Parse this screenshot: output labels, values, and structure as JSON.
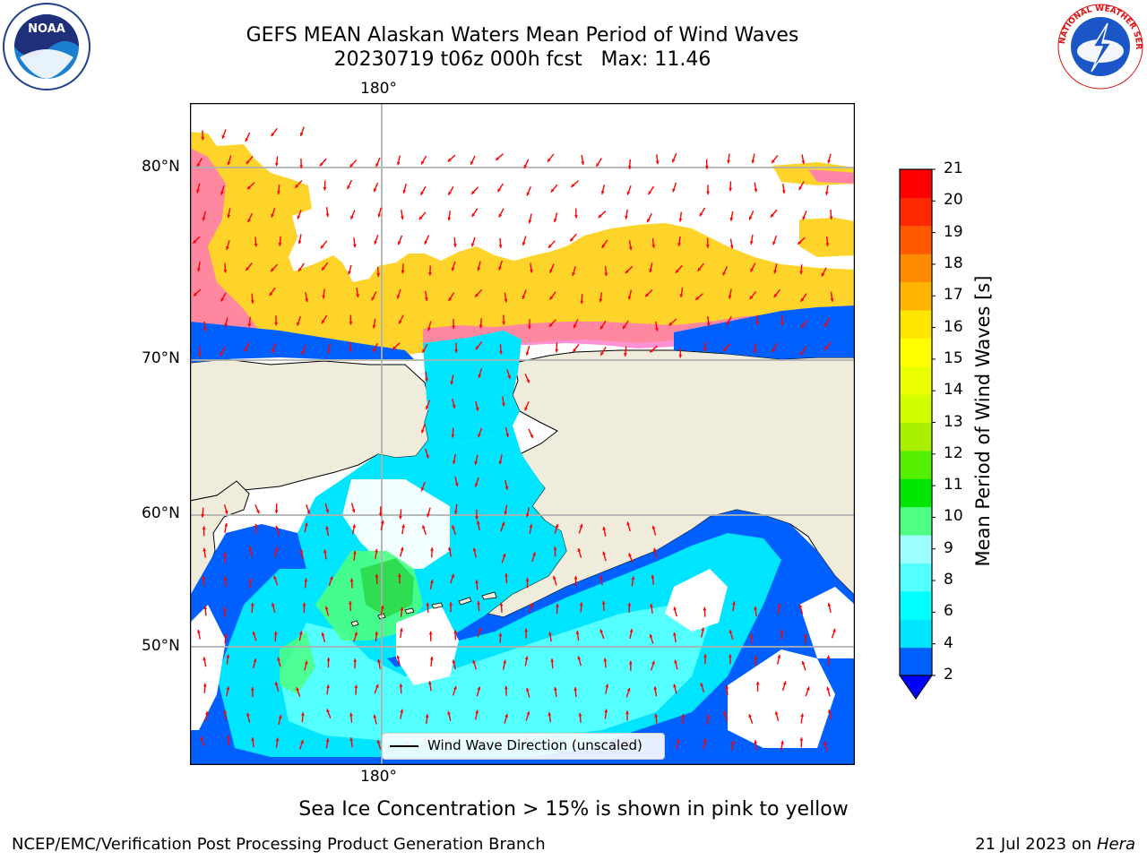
{
  "header": {
    "title_line1": "GEFS MEAN Alaskan Waters Mean Period of Wind Waves",
    "title_line2": "20230719 t06z 000h fcst   Max: 11.46"
  },
  "logos": {
    "noara_left": "NOAA",
    "nws_right": "NATIONAL WEATHER SERVICE"
  },
  "map": {
    "lon_label_top": "180°",
    "lon_label_bottom": "180°",
    "lat_labels": [
      "80°N",
      "70°N",
      "60°N",
      "50°N"
    ],
    "legend_text": "Wind Wave Direction (unscaled)",
    "colors": {
      "land": "#efecdc",
      "ice_yellow": "#ffd42a",
      "ice_pink": "#ff6ec7",
      "gridline": "#b0b0b0",
      "arrow": "#ff0000"
    }
  },
  "colorbar": {
    "label": "Mean Period of Wind Waves [s]",
    "ticks": [
      "21",
      "20",
      "19",
      "18",
      "17",
      "16",
      "15",
      "14",
      "13",
      "12",
      "11",
      "10",
      "9",
      "8",
      "6",
      "4",
      "2"
    ],
    "colors_bottom_to_top": [
      "#0060ff",
      "#00e5ff",
      "#00ffff",
      "#54ffff",
      "#9dffff",
      "#4dff82",
      "#00e600",
      "#54f000",
      "#a8f000",
      "#d2ff00",
      "#ebff00",
      "#ffff00",
      "#ffe600",
      "#ffb400",
      "#ff8c00",
      "#ff5a00",
      "#ff2800",
      "#ff0000"
    ],
    "under_color": "#0000ff"
  },
  "notes": {
    "sea_ice": "Sea Ice Concentration > 15% is shown in pink to yellow"
  },
  "footer": {
    "left": "NCEP/EMC/Verification Post Processing Product Generation Branch",
    "right_date": "21 Jul 2023 on ",
    "right_machine": "Hera"
  }
}
